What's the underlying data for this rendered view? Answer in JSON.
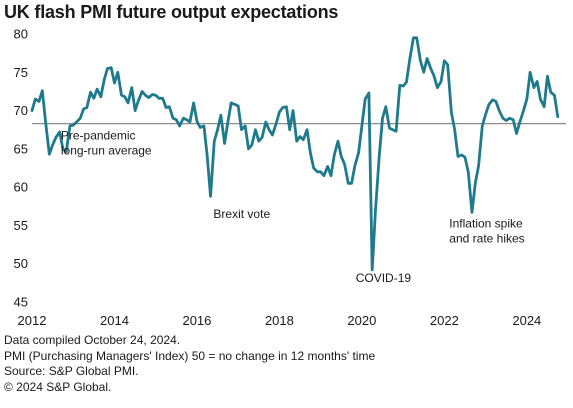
{
  "chart_data": {
    "type": "line",
    "title": "UK flash PMI future output expectations",
    "xlabel": "",
    "ylabel": "",
    "xlim": [
      2012.0,
      2024.95
    ],
    "ylim": [
      45,
      80
    ],
    "x_ticks": [
      2012,
      2014,
      2016,
      2018,
      2020,
      2022,
      2024
    ],
    "y_ticks": [
      45,
      50,
      55,
      60,
      65,
      70,
      75,
      80
    ],
    "grid": false,
    "legend": "none",
    "line_color": "#1f7b8c",
    "reference_line": {
      "y": 68.3,
      "color": "#8c8c8c"
    },
    "annotations": [
      {
        "lines": [
          "Pre-pandemic",
          "long-run average"
        ],
        "x": 2012.7,
        "y": 66.2
      },
      {
        "lines": [
          "Brexit vote"
        ],
        "x": 2016.4,
        "y": 56.0
      },
      {
        "lines": [
          "COVID-19"
        ],
        "x": 2019.85,
        "y": 47.6
      },
      {
        "lines": [
          "Inflation  spike",
          "and rate hikes"
        ],
        "x": 2022.12,
        "y": 54.7
      }
    ],
    "series": [
      {
        "name": "",
        "x": [
          2012.0,
          2012.08,
          2012.17,
          2012.25,
          2012.33,
          2012.42,
          2012.5,
          2012.58,
          2012.67,
          2012.75,
          2012.83,
          2012.92,
          2013.0,
          2013.08,
          2013.17,
          2013.25,
          2013.33,
          2013.42,
          2013.5,
          2013.58,
          2013.67,
          2013.75,
          2013.83,
          2013.92,
          2014.0,
          2014.08,
          2014.17,
          2014.25,
          2014.33,
          2014.42,
          2014.5,
          2014.58,
          2014.67,
          2014.75,
          2014.83,
          2014.92,
          2015.0,
          2015.08,
          2015.17,
          2015.25,
          2015.33,
          2015.42,
          2015.5,
          2015.58,
          2015.67,
          2015.75,
          2015.83,
          2015.92,
          2016.0,
          2016.08,
          2016.17,
          2016.25,
          2016.33,
          2016.42,
          2016.5,
          2016.58,
          2016.67,
          2016.75,
          2016.83,
          2016.92,
          2017.0,
          2017.08,
          2017.17,
          2017.25,
          2017.33,
          2017.42,
          2017.5,
          2017.58,
          2017.67,
          2017.75,
          2017.83,
          2017.92,
          2018.0,
          2018.08,
          2018.17,
          2018.25,
          2018.33,
          2018.42,
          2018.5,
          2018.58,
          2018.67,
          2018.75,
          2018.83,
          2018.92,
          2019.0,
          2019.08,
          2019.17,
          2019.25,
          2019.33,
          2019.42,
          2019.5,
          2019.58,
          2019.67,
          2019.75,
          2019.83,
          2019.92,
          2020.0,
          2020.08,
          2020.17,
          2020.25,
          2020.33,
          2020.42,
          2020.5,
          2020.58,
          2020.67,
          2020.75,
          2020.83,
          2020.92,
          2021.0,
          2021.08,
          2021.17,
          2021.25,
          2021.33,
          2021.42,
          2021.5,
          2021.58,
          2021.67,
          2021.75,
          2021.83,
          2021.92,
          2022.0,
          2022.08,
          2022.17,
          2022.25,
          2022.33,
          2022.42,
          2022.5,
          2022.58,
          2022.67,
          2022.75,
          2022.83,
          2022.92,
          2023.0,
          2023.08,
          2023.17,
          2023.25,
          2023.33,
          2023.42,
          2023.5,
          2023.58,
          2023.67,
          2023.75,
          2023.83,
          2023.92,
          2024.0,
          2024.08,
          2024.17,
          2024.25,
          2024.33,
          2024.42,
          2024.5,
          2024.58,
          2024.67,
          2024.75
        ],
        "values": [
          70.0,
          71.5,
          71.2,
          72.6,
          68.5,
          64.3,
          65.5,
          66.5,
          67.2,
          65.0,
          64.6,
          68.0,
          68.1,
          68.5,
          69.0,
          70.2,
          70.4,
          72.4,
          71.6,
          72.8,
          71.8,
          74.0,
          75.5,
          75.6,
          73.6,
          75.0,
          72.0,
          71.8,
          71.0,
          73.0,
          70.0,
          71.3,
          72.5,
          72.0,
          71.7,
          72.1,
          72.0,
          71.6,
          71.6,
          70.4,
          70.5,
          69.0,
          68.8,
          68.0,
          69.0,
          68.8,
          68.5,
          71.0,
          68.6,
          67.8,
          68.0,
          64.0,
          58.8,
          66.0,
          67.5,
          69.4,
          65.7,
          68.5,
          71.0,
          70.8,
          70.6,
          67.5,
          68.0,
          65.0,
          65.5,
          67.5,
          66.0,
          66.5,
          68.5,
          67.5,
          66.8,
          68.3,
          69.8,
          70.4,
          70.5,
          67.5,
          70.0,
          66.0,
          66.6,
          66.2,
          67.5,
          64.5,
          62.5,
          62.0,
          62.0,
          61.5,
          62.7,
          61.5,
          64.2,
          66.0,
          64.0,
          63.0,
          60.5,
          60.5,
          62.8,
          64.5,
          68.0,
          71.5,
          72.3,
          49.2,
          57.0,
          64.0,
          69.0,
          70.5,
          67.7,
          67.5,
          67.3,
          73.3,
          73.2,
          73.7,
          77.0,
          79.5,
          79.5,
          76.5,
          75.0,
          76.8,
          75.5,
          74.5,
          73.0,
          73.8,
          76.5,
          76.0,
          69.8,
          67.5,
          64.0,
          64.2,
          63.9,
          62.0,
          56.7,
          60.5,
          62.8,
          68.0,
          69.5,
          70.8,
          71.4,
          71.2,
          70.0,
          69.0,
          68.7,
          69.0,
          68.8,
          67.0,
          68.5,
          70.0,
          71.5,
          75.0,
          73.0,
          73.8,
          71.5,
          70.5,
          74.5,
          72.4,
          72.0,
          69.2
        ]
      }
    ]
  },
  "notes": {
    "compiled": "Data compiled October 24, 2024.",
    "pmi_def": "PMI (Purchasing Managers' Index) 50 = no change in 12 months' time",
    "source": "Source: S&P Global PMI.",
    "copyright": "© 2024 S&P Global."
  }
}
